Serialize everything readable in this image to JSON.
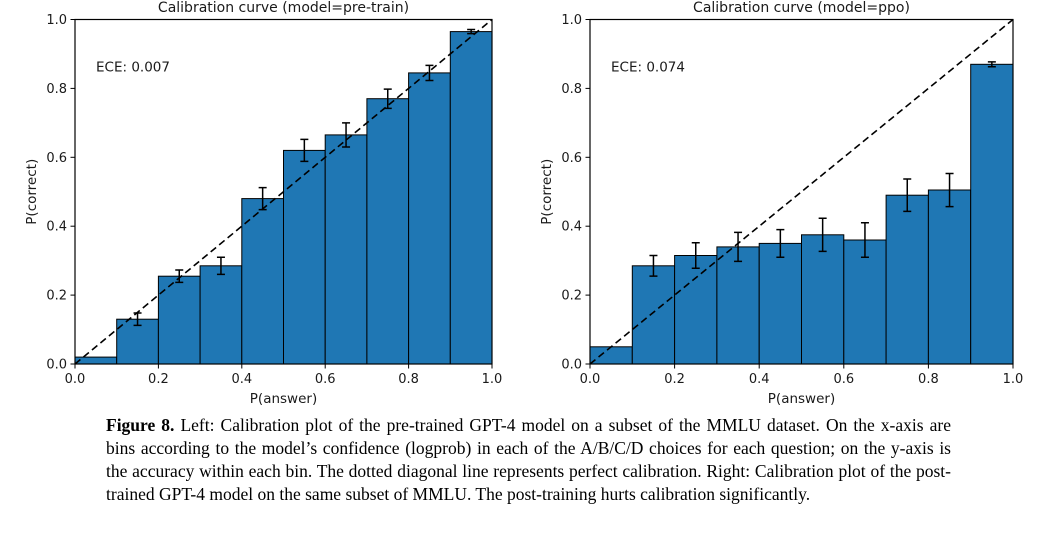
{
  "page": {
    "background": "#ffffff"
  },
  "colors": {
    "bar_fill": "#1f77b4",
    "bar_edge": "#000000",
    "error_bar": "#000000",
    "diagonal_line": "#000000",
    "frame": "#000000"
  },
  "caption": {
    "label": "Figure 8.",
    "text": "Left: Calibration plot of the pre-trained GPT-4 model on a subset of the MMLU dataset. On the x-axis are bins according to the model’s confidence (logprob) in each of the A/B/C/D choices for each question; on the y-axis is the accuracy within each bin. The dotted diagonal line represents perfect calibration. Right: Calibration plot of the post-trained GPT-4 model on the same subset of MMLU. The post-training hurts calibration significantly."
  },
  "chart_data": [
    {
      "type": "bar",
      "title": "Calibration curve (model=pre-train)",
      "annotation": "ECE: 0.007",
      "xlabel": "P(answer)",
      "ylabel": "P(correct)",
      "xlim": [
        0.0,
        1.0
      ],
      "ylim": [
        0.0,
        1.0
      ],
      "xticks": [
        0.0,
        0.2,
        0.4,
        0.6,
        0.8,
        1.0
      ],
      "yticks": [
        0.0,
        0.2,
        0.4,
        0.6,
        0.8,
        1.0
      ],
      "bin_edges": [
        0.0,
        0.1,
        0.2,
        0.3,
        0.4,
        0.5,
        0.6,
        0.7,
        0.8,
        0.9,
        1.0
      ],
      "bin_centers": [
        0.05,
        0.15,
        0.25,
        0.35,
        0.45,
        0.55,
        0.65,
        0.75,
        0.85,
        0.95
      ],
      "values": [
        0.02,
        0.13,
        0.255,
        0.285,
        0.48,
        0.62,
        0.665,
        0.77,
        0.845,
        0.965
      ],
      "errors": [
        0,
        0.018,
        0.018,
        0.025,
        0.032,
        0.032,
        0.035,
        0.028,
        0.022,
        0.006
      ],
      "diagonal_line": true,
      "grid": false,
      "legend": false
    },
    {
      "type": "bar",
      "title": "Calibration curve (model=ppo)",
      "annotation": "ECE: 0.074",
      "xlabel": "P(answer)",
      "ylabel": "P(correct)",
      "xlim": [
        0.0,
        1.0
      ],
      "ylim": [
        0.0,
        1.0
      ],
      "xticks": [
        0.0,
        0.2,
        0.4,
        0.6,
        0.8,
        1.0
      ],
      "yticks": [
        0.0,
        0.2,
        0.4,
        0.6,
        0.8,
        1.0
      ],
      "bin_edges": [
        0.0,
        0.1,
        0.2,
        0.3,
        0.4,
        0.5,
        0.6,
        0.7,
        0.8,
        0.9,
        1.0
      ],
      "bin_centers": [
        0.05,
        0.15,
        0.25,
        0.35,
        0.45,
        0.55,
        0.65,
        0.75,
        0.85,
        0.95
      ],
      "values": [
        0.05,
        0.285,
        0.315,
        0.34,
        0.35,
        0.375,
        0.36,
        0.49,
        0.505,
        0.87
      ],
      "errors": [
        0,
        0.03,
        0.037,
        0.042,
        0.04,
        0.048,
        0.05,
        0.047,
        0.048,
        0.007
      ],
      "diagonal_line": true,
      "grid": false,
      "legend": false
    }
  ]
}
